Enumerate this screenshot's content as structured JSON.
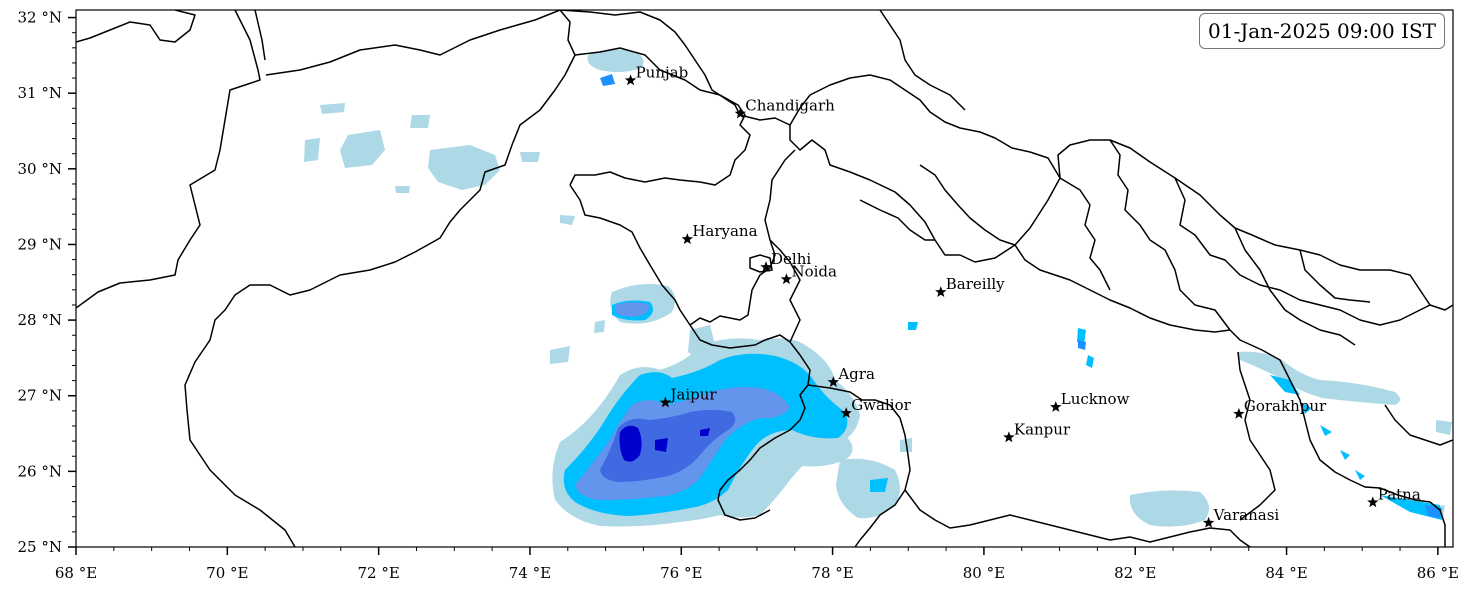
{
  "map": {
    "timestamp": "01-Jan-2025 09:00 IST",
    "lon_range": [
      68,
      86.2
    ],
    "lat_range": [
      25,
      32.1
    ],
    "x_ticks": [
      {
        "value": 68,
        "label": "68 °E"
      },
      {
        "value": 70,
        "label": "70 °E"
      },
      {
        "value": 72,
        "label": "72 °E"
      },
      {
        "value": 74,
        "label": "74 °E"
      },
      {
        "value": 76,
        "label": "76 °E"
      },
      {
        "value": 78,
        "label": "78 °E"
      },
      {
        "value": 80,
        "label": "80 °E"
      },
      {
        "value": 82,
        "label": "82 °E"
      },
      {
        "value": 84,
        "label": "84 °E"
      },
      {
        "value": 86,
        "label": "86 °E"
      }
    ],
    "y_ticks": [
      {
        "value": 25,
        "label": "25 °N"
      },
      {
        "value": 26,
        "label": "26 °N"
      },
      {
        "value": 27,
        "label": "27 °N"
      },
      {
        "value": 28,
        "label": "28 °N"
      },
      {
        "value": 29,
        "label": "29 °N"
      },
      {
        "value": 30,
        "label": "30 °N"
      },
      {
        "value": 31,
        "label": "31 °N"
      },
      {
        "value": 32,
        "label": "32 °N"
      }
    ],
    "cities": [
      {
        "name": "Punjab",
        "lon": 75.33,
        "lat": 31.17
      },
      {
        "name": "Chandigarh",
        "lon": 76.78,
        "lat": 30.73
      },
      {
        "name": "Haryana",
        "lon": 76.08,
        "lat": 29.07
      },
      {
        "name": "Delhi",
        "lon": 77.12,
        "lat": 28.7
      },
      {
        "name": "Noida",
        "lon": 77.39,
        "lat": 28.54
      },
      {
        "name": "Bareilly",
        "lon": 79.43,
        "lat": 28.37
      },
      {
        "name": "Agra",
        "lon": 78.01,
        "lat": 27.18
      },
      {
        "name": "Jaipur",
        "lon": 75.79,
        "lat": 26.91
      },
      {
        "name": "Gwalior",
        "lon": 78.18,
        "lat": 26.77
      },
      {
        "name": "Lucknow",
        "lon": 80.95,
        "lat": 26.85
      },
      {
        "name": "Kanpur",
        "lon": 80.33,
        "lat": 26.45
      },
      {
        "name": "Gorakhpur",
        "lon": 83.37,
        "lat": 26.76
      },
      {
        "name": "Varanasi",
        "lon": 82.97,
        "lat": 25.32
      },
      {
        "name": "Patna",
        "lon": 85.14,
        "lat": 25.59
      }
    ],
    "contour_levels": [
      {
        "color": "#add8e6"
      },
      {
        "color": "#00bfff"
      },
      {
        "color": "#1e90ff"
      },
      {
        "color": "#6495ed"
      },
      {
        "color": "#4169e1"
      },
      {
        "color": "#0000cd"
      }
    ]
  }
}
